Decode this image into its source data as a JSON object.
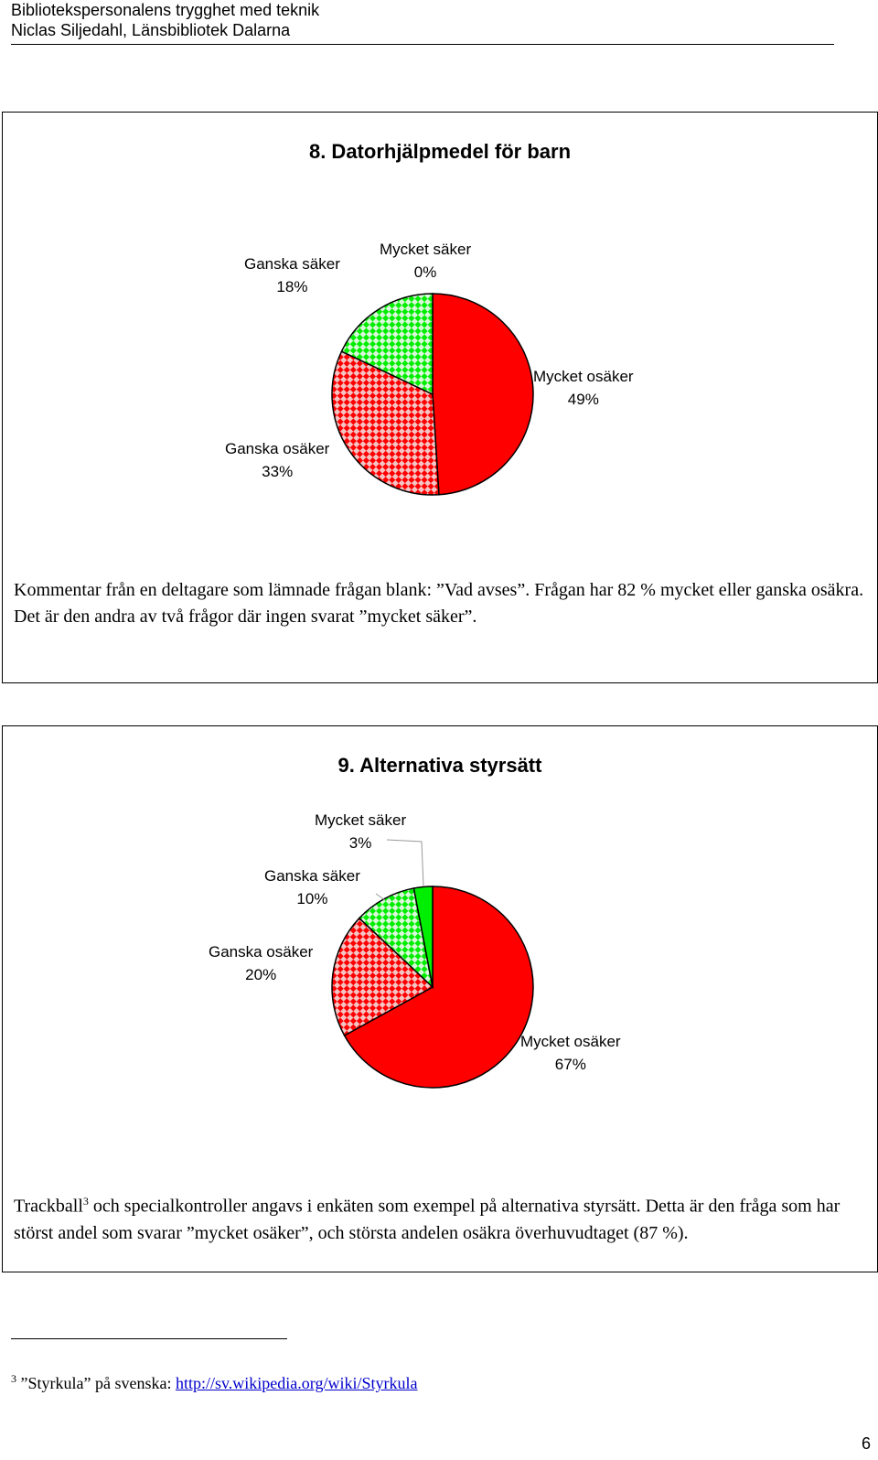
{
  "header": {
    "title": "Biblioteksperson­alens trygghet med teknik",
    "author": "Niclas Siljedahl, Länsbibliotek Dalarna"
  },
  "colors": {
    "red": "#ff0000",
    "green": "#00ee00",
    "check_light": "#f4c4c4",
    "check_light_green": "#d9f7d9"
  },
  "chart_data": [
    {
      "type": "pie",
      "title": "8. Datorhjälpmedel för barn",
      "slices": [
        {
          "name": "Mycket osäker",
          "value": 49,
          "label": "49%",
          "color": "#ff0000",
          "pattern": "solid"
        },
        {
          "name": "Ganska osäker",
          "value": 33,
          "label": "33%",
          "color": "#ff0000",
          "pattern": "check"
        },
        {
          "name": "Ganska säker",
          "value": 18,
          "label": "18%",
          "color": "#00ee00",
          "pattern": "check"
        },
        {
          "name": "Mycket säker",
          "value": 0,
          "label": "0%",
          "color": "#00ee00",
          "pattern": "solid"
        }
      ]
    },
    {
      "type": "pie",
      "title": "9. Alternativa styrsätt",
      "slices": [
        {
          "name": "Mycket osäker",
          "value": 67,
          "label": "67%",
          "color": "#ff0000",
          "pattern": "solid"
        },
        {
          "name": "Ganska osäker",
          "value": 20,
          "label": "20%",
          "color": "#ff0000",
          "pattern": "check"
        },
        {
          "name": "Ganska säker",
          "value": 10,
          "label": "10%",
          "color": "#00ee00",
          "pattern": "check"
        },
        {
          "name": "Mycket säker",
          "value": 3,
          "label": "3%",
          "color": "#00ee00",
          "pattern": "solid"
        }
      ]
    }
  ],
  "comments": {
    "q8": "Kommentar från en deltagare som lämnade frågan blank: ”Vad avses”. Frågan har 82 % mycket eller ganska osäkra. Det är den andra av två frågor där ingen svarat ”mycket säker”.",
    "q9_before": "Trackball",
    "q9_sup": "3",
    "q9_after": " och specialkontroller angavs i enkäten som exempel på alternativa styrsätt. Detta är den fråga som har störst andel som svarar ”mycket osäker”, och största andelen osäkra överhuvudtaget (87 %)."
  },
  "footnote": {
    "number": "3",
    "text": " ”Styrkula” på svenska: ",
    "link": "http://sv.wikipedia.org/wiki/Styrkula"
  },
  "page_number": "6"
}
